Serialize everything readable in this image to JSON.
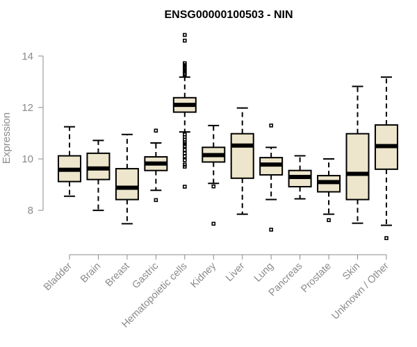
{
  "chart_data": {
    "type": "boxplot",
    "title": "ENSG00000100503 - NIN",
    "xlabel": "",
    "ylabel": "Expression",
    "ylim": [
      6.6,
      15.1
    ],
    "yticks": [
      8,
      10,
      12,
      14
    ],
    "box_fill": "#ede6cc",
    "categories": [
      "Bladder",
      "Brain",
      "Breast",
      "Gastric",
      "Hematopoietic cells",
      "Kidney",
      "Liver",
      "Lung",
      "Pancreas",
      "Prostate",
      "Skin",
      "Unknown / Other"
    ],
    "series": [
      {
        "name": "Bladder",
        "whisker_low": 8.55,
        "q1": 9.12,
        "median": 9.58,
        "q3": 10.12,
        "whisker_high": 11.25,
        "outliers": []
      },
      {
        "name": "Brain",
        "whisker_low": 8.0,
        "q1": 9.2,
        "median": 9.63,
        "q3": 10.22,
        "whisker_high": 10.72,
        "outliers": []
      },
      {
        "name": "Breast",
        "whisker_low": 7.48,
        "q1": 8.42,
        "median": 8.88,
        "q3": 9.62,
        "whisker_high": 10.95,
        "outliers": []
      },
      {
        "name": "Gastric",
        "whisker_low": 8.78,
        "q1": 9.55,
        "median": 9.82,
        "q3": 10.08,
        "whisker_high": 10.62,
        "outliers": [
          11.1,
          8.4
        ]
      },
      {
        "name": "Hematopoietic cells",
        "whisker_low": 11.05,
        "q1": 11.82,
        "median": 12.1,
        "q3": 12.38,
        "whisker_high": 13.18,
        "outliers": [
          14.82,
          14.6,
          13.72,
          13.65,
          13.58,
          13.52,
          13.45,
          13.38,
          13.32,
          13.28,
          10.95,
          10.85,
          10.75,
          10.65,
          10.58,
          10.5,
          10.35,
          10.22,
          10.1,
          9.95,
          9.78,
          9.7,
          8.92
        ]
      },
      {
        "name": "Kidney",
        "whisker_low": 9.05,
        "q1": 9.88,
        "median": 10.15,
        "q3": 10.45,
        "whisker_high": 11.3,
        "outliers": [
          8.93,
          7.48
        ]
      },
      {
        "name": "Liver",
        "whisker_low": 7.85,
        "q1": 9.25,
        "median": 10.52,
        "q3": 10.98,
        "whisker_high": 11.98,
        "outliers": []
      },
      {
        "name": "Lung",
        "whisker_low": 8.42,
        "q1": 9.38,
        "median": 9.78,
        "q3": 10.05,
        "whisker_high": 10.45,
        "outliers": [
          11.3,
          7.25
        ]
      },
      {
        "name": "Pancreas",
        "whisker_low": 8.45,
        "q1": 8.92,
        "median": 9.3,
        "q3": 9.55,
        "whisker_high": 10.12,
        "outliers": []
      },
      {
        "name": "Prostate",
        "whisker_low": 7.85,
        "q1": 8.72,
        "median": 9.1,
        "q3": 9.35,
        "whisker_high": 10.0,
        "outliers": [
          7.62
        ]
      },
      {
        "name": "Skin",
        "whisker_low": 7.5,
        "q1": 8.42,
        "median": 9.42,
        "q3": 10.98,
        "whisker_high": 12.82,
        "outliers": []
      },
      {
        "name": "Unknown / Other",
        "whisker_low": 7.42,
        "q1": 9.6,
        "median": 10.5,
        "q3": 11.32,
        "whisker_high": 13.18,
        "outliers": [
          6.92
        ]
      }
    ]
  }
}
